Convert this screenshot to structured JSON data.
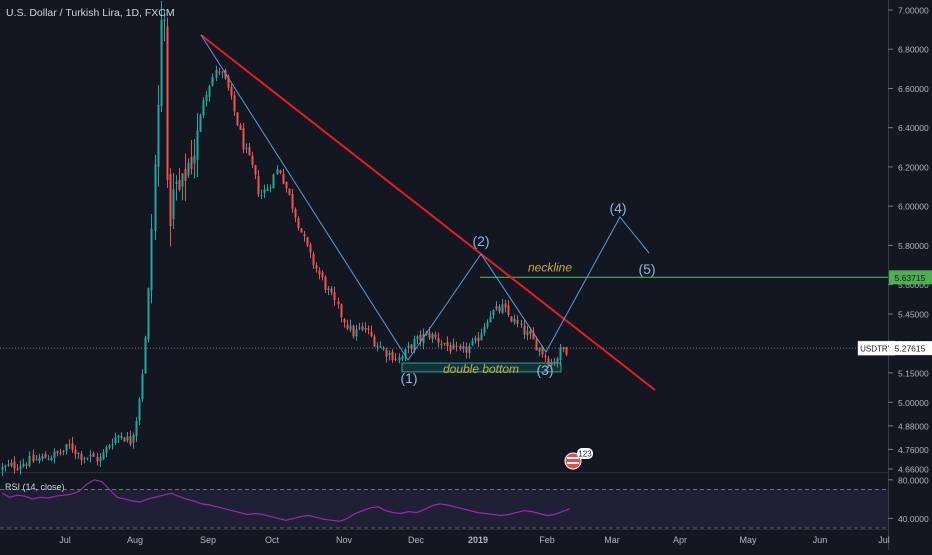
{
  "header": {
    "title": "U.S. Dollar / Turkish Lira, 1D, FXCM"
  },
  "price_axis": {
    "ticks": [
      "7.00000",
      "6.80000",
      "6.60000",
      "6.40000",
      "6.20000",
      "6.00000",
      "5.80000",
      "5.60000",
      "5.45000",
      "5.30000",
      "5.15000",
      "5.00000",
      "4.88000",
      "4.76000",
      "4.66000"
    ],
    "ticks_values": [
      7.0,
      6.8,
      6.6,
      6.4,
      6.2,
      6.0,
      5.8,
      5.6,
      5.45,
      5.3,
      5.15,
      5.0,
      4.88,
      4.76,
      4.66
    ],
    "symbol_label": "USDTRY",
    "last_price": "5.27615",
    "neckline_price_label": "5.63715"
  },
  "time_axis": {
    "ticks": [
      "Jul",
      "Aug",
      "Sep",
      "Oct",
      "Nov",
      "Dec",
      "2019",
      "Feb",
      "Mar",
      "Apr",
      "May",
      "Jun",
      "Jul"
    ]
  },
  "annotations": {
    "neckline": "neckline",
    "double_bottom": "double bottom",
    "wave1": "(1)",
    "wave2": "(2)",
    "wave3": "(3)",
    "wave4": "(4)",
    "wave5": "(5)",
    "flag_badge": "123"
  },
  "rsi": {
    "label": "RSI (14, close)",
    "ticks": [
      "80.0000",
      "40.0000"
    ],
    "upper_band": 70,
    "lower_band": 30
  },
  "colors": {
    "background": "#131722",
    "up_candle": "#26a69a",
    "down_candle": "#ef5350",
    "trendline": "#e51c23",
    "wave_line": "#5b9bd5",
    "neckline": "#4caf50",
    "rsi_line": "#9c27b0",
    "annotation_text": "#c9b03a",
    "wave_label": "#8fb4e0"
  },
  "chart_data": {
    "type": "candlestick",
    "title": "U.S. Dollar / Turkish Lira, 1D, FXCM",
    "instrument": "USDTRY",
    "ylim": [
      4.64,
      7.02
    ],
    "last_close": 5.27615,
    "neckline": 5.63715,
    "trendline": {
      "from": [
        "Sep",
        6.83
      ],
      "to": [
        "Feb",
        5.0
      ]
    },
    "wave_path": [
      {
        "label": "",
        "x": "Sep",
        "y": 6.83
      },
      {
        "label": "(1)",
        "x": "Nov",
        "y": 5.13
      },
      {
        "label": "(2)",
        "x": "2019",
        "y": 5.63
      },
      {
        "label": "(3)",
        "x": "Feb",
        "y": 5.15
      },
      {
        "label": "(4)",
        "x": "Mar",
        "y": 5.81
      },
      {
        "label": "(5)",
        "x": "Mar",
        "y": 5.64
      }
    ],
    "double_bottom_zone": [
      5.155,
      5.2
    ],
    "price_path": [
      {
        "x": "Jun",
        "y": 4.66
      },
      {
        "x": "Jul",
        "y": 4.74
      },
      {
        "x": "Jul",
        "y": 4.78
      },
      {
        "x": "Jul",
        "y": 4.73
      },
      {
        "x": "Jul",
        "y": 4.72
      },
      {
        "x": "Jul",
        "y": 4.71
      },
      {
        "x": "Jul",
        "y": 4.8
      },
      {
        "x": "Jul",
        "y": 4.84
      },
      {
        "x": "Aug",
        "y": 4.8
      },
      {
        "x": "Aug",
        "y": 4.9
      },
      {
        "x": "Aug",
        "y": 5.1
      },
      {
        "x": "Aug",
        "y": 5.4
      },
      {
        "x": "Aug",
        "y": 6.0
      },
      {
        "x": "Aug",
        "y": 6.55
      },
      {
        "x": "Aug",
        "y": 6.15
      },
      {
        "x": "Aug",
        "y": 5.95
      },
      {
        "x": "Aug",
        "y": 6.1
      },
      {
        "x": "Aug",
        "y": 6.05
      },
      {
        "x": "Aug",
        "y": 6.2
      },
      {
        "x": "Aug",
        "y": 6.25
      },
      {
        "x": "Aug",
        "y": 6.35
      },
      {
        "x": "Sep",
        "y": 6.55
      },
      {
        "x": "Sep",
        "y": 6.65
      },
      {
        "x": "Sep",
        "y": 6.7
      },
      {
        "x": "Sep",
        "y": 6.6
      },
      {
        "x": "Sep",
        "y": 6.45
      },
      {
        "x": "Sep",
        "y": 6.3
      },
      {
        "x": "Sep",
        "y": 6.2
      },
      {
        "x": "Sep",
        "y": 6.05
      },
      {
        "x": "Oct",
        "y": 6.1
      },
      {
        "x": "Oct",
        "y": 6.2
      },
      {
        "x": "Oct",
        "y": 6.05
      },
      {
        "x": "Oct",
        "y": 5.9
      },
      {
        "x": "Oct",
        "y": 5.75
      },
      {
        "x": "Oct",
        "y": 5.65
      },
      {
        "x": "Oct",
        "y": 5.55
      },
      {
        "x": "Nov",
        "y": 5.45
      },
      {
        "x": "Nov",
        "y": 5.35
      },
      {
        "x": "Nov",
        "y": 5.38
      },
      {
        "x": "Nov",
        "y": 5.3
      },
      {
        "x": "Nov",
        "y": 5.25
      },
      {
        "x": "Nov",
        "y": 5.22
      },
      {
        "x": "Dec",
        "y": 5.3
      },
      {
        "x": "Dec",
        "y": 5.35
      },
      {
        "x": "Dec",
        "y": 5.3
      },
      {
        "x": "Dec",
        "y": 5.25
      },
      {
        "x": "2019",
        "y": 5.3
      },
      {
        "x": "2019",
        "y": 5.45
      },
      {
        "x": "2019",
        "y": 5.48
      },
      {
        "x": "2019",
        "y": 5.4
      },
      {
        "x": "2019",
        "y": 5.33
      },
      {
        "x": "Feb",
        "y": 5.25
      },
      {
        "x": "Feb",
        "y": 5.2
      },
      {
        "x": "Feb",
        "y": 5.22
      },
      {
        "x": "Feb",
        "y": 5.27
      }
    ],
    "rsi_ylim": [
      30,
      85
    ],
    "rsi_values": [
      66,
      62,
      64,
      63,
      60,
      62,
      61,
      63,
      64,
      65,
      68,
      75,
      80,
      78,
      70,
      62,
      60,
      58,
      57,
      60,
      62,
      64,
      66,
      63,
      60,
      58,
      55,
      54,
      52,
      50,
      48,
      46,
      44,
      45,
      44,
      42,
      40,
      38,
      40,
      42,
      43,
      41,
      39,
      38,
      37,
      40,
      45,
      48,
      51,
      52,
      48,
      46,
      45,
      47,
      46,
      49,
      53,
      55,
      54,
      52,
      50,
      48,
      46,
      45,
      44,
      43,
      44,
      46,
      48,
      47,
      45,
      43,
      44,
      47,
      50
    ]
  }
}
